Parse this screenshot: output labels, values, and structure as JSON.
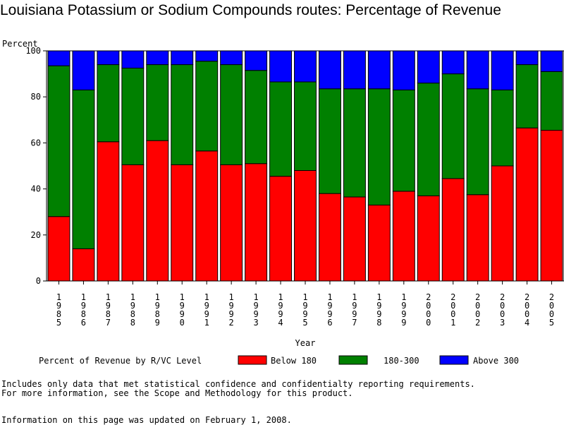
{
  "title": "Louisiana Potassium or Sodium Compounds routes: Percentage of Revenue",
  "chart_data": {
    "type": "bar",
    "stacked": true,
    "ylabel": "Percent",
    "xlabel": "Year",
    "ylim": [
      0,
      100
    ],
    "yticks": [
      0,
      20,
      40,
      60,
      80,
      100
    ],
    "categories": [
      "1985",
      "1986",
      "1987",
      "1988",
      "1989",
      "1990",
      "1991",
      "1992",
      "1993",
      "1994",
      "1995",
      "1996",
      "1997",
      "1998",
      "1999",
      "2000",
      "2001",
      "2002",
      "2003",
      "2004",
      "2005"
    ],
    "series": [
      {
        "name": "Below 180",
        "color": "#ff0000",
        "values": [
          28,
          14,
          60.5,
          50.5,
          61,
          50.5,
          56.5,
          50.5,
          51,
          45.5,
          48,
          38,
          36.5,
          33,
          39,
          37,
          44.5,
          37.5,
          50,
          66.5,
          65.5
        ]
      },
      {
        "name": "180-300",
        "color": "#008000",
        "values": [
          65.5,
          69,
          33.5,
          42,
          33,
          43.5,
          39,
          43.5,
          40.5,
          41,
          38.5,
          45.5,
          47,
          50.5,
          44,
          49,
          45.5,
          46,
          33,
          27.5,
          25.5
        ]
      },
      {
        "name": "Above 300",
        "color": "#0000ff",
        "values": [
          6.5,
          17,
          6,
          7.5,
          6,
          6,
          4.5,
          6,
          8.5,
          13.5,
          13.5,
          16.5,
          16.5,
          16.5,
          17,
          14,
          10,
          16.5,
          17,
          6,
          9
        ]
      }
    ],
    "legend": {
      "title": "Percent of Revenue by R/VC Level",
      "placement": "bottom"
    }
  },
  "notes": {
    "line1": "Includes only data that met statistical confidence and confidentialty reporting requirements.",
    "line2": "For more information, see the Scope and Methodology for this product.",
    "updated": "Information on this page was updated on February 1, 2008."
  }
}
